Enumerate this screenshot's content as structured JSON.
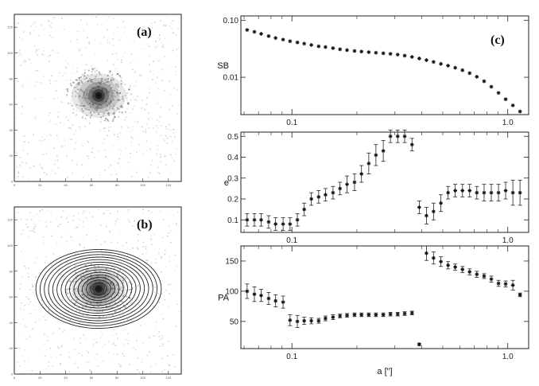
{
  "panel_labels": [
    "(a)",
    "(b)",
    "(c)"
  ],
  "image_axis_ticks": {
    "x": [
      "0",
      "20",
      "40",
      "60",
      "80",
      "100",
      "120"
    ],
    "y": [
      "0",
      "20",
      "40",
      "60",
      "80",
      "100",
      "120"
    ]
  },
  "chart_data": [
    {
      "type": "scatter",
      "panel": "(c) top",
      "ylabel": "SB",
      "xscale": "log",
      "yscale": "log",
      "xlim": [
        0.058,
        1.25
      ],
      "ylim": [
        0.0022,
        0.12
      ],
      "xticks": [
        "0.1",
        "1.0"
      ],
      "yticks": [
        "0.10",
        "0.01"
      ],
      "x": [
        0.062,
        0.067,
        0.072,
        0.078,
        0.084,
        0.091,
        0.098,
        0.106,
        0.114,
        0.123,
        0.133,
        0.143,
        0.155,
        0.167,
        0.18,
        0.195,
        0.21,
        0.227,
        0.245,
        0.265,
        0.286,
        0.309,
        0.333,
        0.36,
        0.389,
        0.42,
        0.453,
        0.49,
        0.529,
        0.571,
        0.617,
        0.666,
        0.719,
        0.777,
        0.839,
        0.906,
        0.978,
        1.056,
        1.14
      ],
      "y": [
        0.068,
        0.063,
        0.058,
        0.053,
        0.049,
        0.046,
        0.043,
        0.041,
        0.039,
        0.037,
        0.035,
        0.034,
        0.0325,
        0.031,
        0.03,
        0.029,
        0.0283,
        0.0276,
        0.027,
        0.0264,
        0.0258,
        0.025,
        0.024,
        0.0228,
        0.0214,
        0.02,
        0.0186,
        0.0172,
        0.016,
        0.0147,
        0.0133,
        0.0118,
        0.0102,
        0.0085,
        0.0068,
        0.0053,
        0.0041,
        0.0032,
        0.0025
      ]
    },
    {
      "type": "scatter",
      "panel": "(c) middle",
      "ylabel": "e",
      "xscale": "log",
      "xlim": [
        0.058,
        1.25
      ],
      "ylim": [
        0.04,
        0.52
      ],
      "xticks": [
        "0.1",
        "1.0"
      ],
      "yticks": [
        "0.1",
        "0.2",
        "0.3",
        "0.4",
        "0.5"
      ],
      "x": [
        0.062,
        0.067,
        0.072,
        0.078,
        0.084,
        0.091,
        0.098,
        0.106,
        0.114,
        0.123,
        0.133,
        0.143,
        0.155,
        0.167,
        0.18,
        0.195,
        0.21,
        0.227,
        0.245,
        0.265,
        0.286,
        0.309,
        0.333,
        0.36,
        0.389,
        0.42,
        0.453,
        0.49,
        0.529,
        0.571,
        0.617,
        0.666,
        0.719,
        0.777,
        0.839,
        0.906,
        0.978,
        1.056,
        1.14
      ],
      "y": [
        0.1,
        0.1,
        0.1,
        0.09,
        0.08,
        0.08,
        0.08,
        0.1,
        0.15,
        0.2,
        0.21,
        0.22,
        0.23,
        0.25,
        0.27,
        0.28,
        0.32,
        0.37,
        0.41,
        0.43,
        0.5,
        0.5,
        0.5,
        0.46,
        0.16,
        0.12,
        0.14,
        0.18,
        0.23,
        0.24,
        0.24,
        0.24,
        0.23,
        0.23,
        0.23,
        0.23,
        0.24,
        0.23,
        0.23
      ],
      "yerr": [
        0.03,
        0.03,
        0.03,
        0.03,
        0.03,
        0.03,
        0.03,
        0.03,
        0.03,
        0.03,
        0.03,
        0.03,
        0.03,
        0.03,
        0.04,
        0.04,
        0.04,
        0.05,
        0.05,
        0.05,
        0.03,
        0.03,
        0.03,
        0.03,
        0.03,
        0.04,
        0.04,
        0.04,
        0.03,
        0.03,
        0.03,
        0.03,
        0.03,
        0.04,
        0.04,
        0.04,
        0.04,
        0.06,
        0.06
      ]
    },
    {
      "type": "scatter",
      "panel": "(c) bottom",
      "ylabel": "PA",
      "xlabel": "a [\"]",
      "xscale": "log",
      "xlim": [
        0.058,
        1.25
      ],
      "ylim": [
        5,
        175
      ],
      "xticks": [
        "0.1",
        "1.0"
      ],
      "yticks": [
        "50",
        "100",
        "150"
      ],
      "x": [
        0.062,
        0.067,
        0.072,
        0.078,
        0.084,
        0.091,
        0.098,
        0.106,
        0.114,
        0.123,
        0.133,
        0.143,
        0.155,
        0.167,
        0.18,
        0.195,
        0.21,
        0.227,
        0.245,
        0.265,
        0.286,
        0.309,
        0.333,
        0.36,
        0.389,
        0.42,
        0.453,
        0.49,
        0.529,
        0.571,
        0.617,
        0.666,
        0.719,
        0.777,
        0.839,
        0.906,
        0.978,
        1.056,
        1.14
      ],
      "y": [
        100,
        95,
        93,
        88,
        84,
        82,
        52,
        50,
        51,
        51,
        51,
        55,
        57,
        59,
        60,
        61,
        61,
        61,
        61,
        61,
        62,
        62,
        63,
        64,
        12,
        163,
        155,
        149,
        143,
        140,
        136,
        132,
        128,
        125,
        120,
        113,
        112,
        110,
        94
      ],
      "yerr": [
        12,
        12,
        10,
        10,
        10,
        10,
        9,
        10,
        6,
        5,
        4,
        4,
        4,
        3,
        3,
        3,
        3,
        3,
        3,
        3,
        3,
        3,
        3,
        3,
        2,
        12,
        10,
        8,
        6,
        5,
        5,
        5,
        5,
        4,
        5,
        5,
        5,
        8,
        3
      ]
    }
  ]
}
